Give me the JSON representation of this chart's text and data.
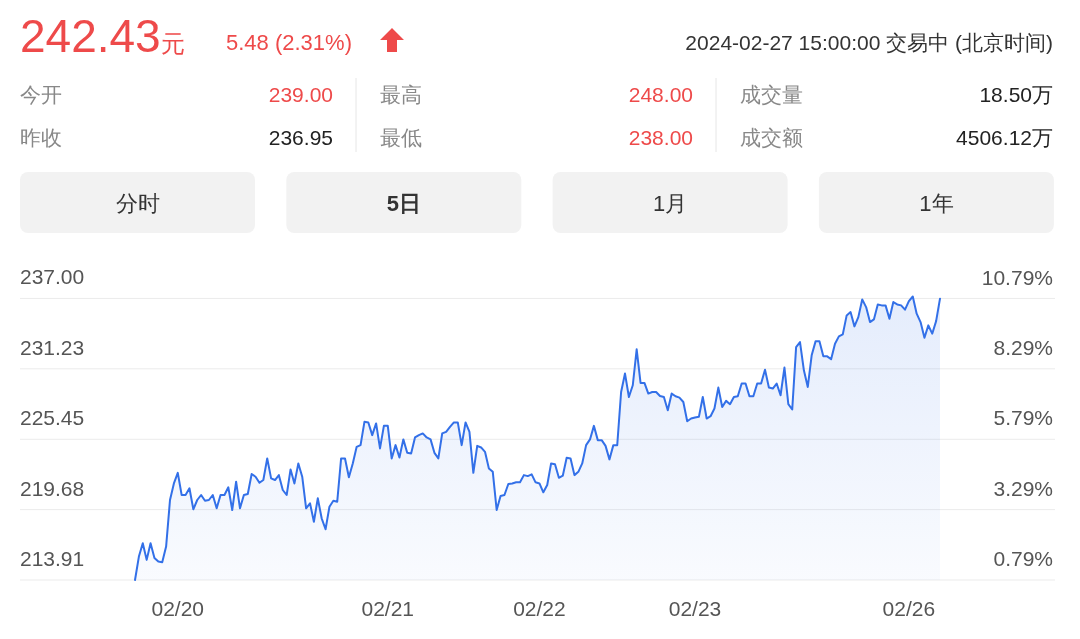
{
  "chart_data": [
    {
      "type": "other",
      "title": "242.43元",
      "annotations": [
        "5.48 (2.31%)",
        "2024-02-27 15:00:00 交易中 (北京时间)",
        "今开",
        "239.00",
        "最高",
        "248.00",
        "成交量",
        "18.50万",
        "昨收",
        "236.95",
        "最低",
        "238.00",
        "成交额",
        "4506.12万",
        "分时",
        "5日",
        "1月",
        "1年"
      ]
    },
    {
      "type": "area",
      "grid": "y",
      "categories": [
        null,
        null,
        null,
        null,
        null,
        null,
        null,
        null,
        null,
        null,
        null,
        "02/20",
        null,
        null,
        null,
        null,
        null,
        null,
        null,
        null,
        null,
        null,
        null,
        null,
        null,
        null,
        null,
        null,
        null,
        null,
        null,
        null,
        null,
        null,
        null,
        null,
        null,
        null,
        null,
        null,
        null,
        null,
        null,
        null,
        null,
        null,
        null,
        null,
        null,
        null,
        null,
        null,
        null,
        null,
        null,
        null,
        null,
        null,
        null,
        null,
        null,
        null,
        null,
        null,
        null,
        "02/21",
        null,
        null,
        null,
        null,
        null,
        null,
        null,
        null,
        null,
        null,
        null,
        null,
        null,
        null,
        null,
        null,
        null,
        null,
        null,
        null,
        null,
        null,
        null,
        null,
        null,
        null,
        null,
        null,
        null,
        null,
        null,
        null,
        null,
        null,
        null,
        null,
        null,
        null,
        "02/22",
        null,
        null,
        null,
        null,
        null,
        null,
        null,
        null,
        null,
        null,
        null,
        null,
        null,
        null,
        null,
        null,
        null,
        null,
        null,
        null,
        null,
        null,
        null,
        null,
        null,
        null,
        null,
        null,
        null,
        null,
        null,
        null,
        null,
        null,
        null,
        null,
        null,
        null,
        null,
        "02/23",
        null,
        null,
        null,
        null,
        null,
        null,
        null,
        null,
        null,
        null,
        null,
        null,
        null,
        null,
        null,
        null,
        null,
        null,
        null,
        null,
        null,
        null,
        null,
        null,
        null,
        null,
        null,
        null,
        null,
        null,
        null,
        null,
        null,
        null,
        null,
        null,
        null,
        null,
        null,
        null,
        null,
        null,
        null,
        null,
        null,
        null,
        null,
        null,
        null,
        null,
        null,
        null,
        null,
        null,
        "02/26",
        null,
        null,
        null,
        null,
        null,
        null,
        null,
        null
      ],
      "series": [
        {
          "color": "#3370e8",
          "values": [
            213.91,
            215.83,
            216.92,
            215.56,
            216.92,
            215.72,
            215.42,
            215.37,
            216.65,
            220.47,
            221.83,
            222.7,
            220.88,
            220.88,
            221.43,
            219.71,
            220.47,
            220.88,
            220.41,
            220.47,
            220.88,
            219.79,
            220.88,
            220.88,
            221.51,
            219.65,
            221.97,
            219.79,
            220.88,
            220.96,
            222.6,
            222.38,
            221.88,
            222.11,
            223.88,
            222.24,
            222.11,
            222.51,
            221.29,
            220.88,
            222.98,
            221.83,
            223.47,
            222.38,
            219.79,
            220.2,
            218.69,
            220.61,
            218.97,
            218.07,
            219.92,
            220.41,
            220.33,
            223.88,
            223.88,
            222.33,
            223.47,
            224.83,
            224.97,
            226.88,
            226.83,
            225.79,
            226.75,
            224.7,
            226.55,
            226.55,
            223.88,
            224.97,
            223.96,
            225.44,
            224.34,
            224.29,
            225.6,
            225.79,
            225.93,
            225.6,
            225.44,
            224.34,
            223.88,
            225.93,
            226.06,
            226.47,
            226.83,
            226.83,
            224.97,
            226.83,
            226.06,
            222.7,
            224.91,
            224.78,
            224.42,
            223.06,
            222.78,
            219.65,
            220.8,
            220.88,
            221.78,
            221.83,
            221.92,
            221.92,
            222.51,
            222.43,
            222.57,
            221.92,
            221.83,
            221.1,
            221.7,
            223.47,
            223.41,
            222.29,
            222.46,
            223.93,
            223.88,
            222.51,
            222.78,
            223.47,
            224.97,
            225.44,
            226.55,
            225.38,
            225.38,
            224.91,
            223.8,
            224.97,
            224.97,
            229.33,
            230.84,
            228.92,
            229.88,
            232.83,
            230.07,
            230.07,
            229.2,
            229.33,
            229.33,
            229.0,
            228.92,
            227.83,
            229.2,
            228.98,
            228.87,
            228.51,
            226.93,
            227.15,
            227.24,
            227.29,
            228.92,
            227.15,
            227.34,
            227.97,
            229.69,
            228.1,
            228.6,
            228.33,
            228.92,
            228.98,
            230.02,
            230.02,
            228.98,
            228.98,
            230.02,
            230.02,
            231.16,
            229.69,
            229.61,
            230.02,
            229.06,
            231.33,
            228.33,
            227.89,
            233.01,
            233.42,
            231.11,
            229.74,
            232.34,
            233.48,
            233.48,
            232.25,
            232.25,
            232.01,
            233.29,
            233.89,
            234.05,
            235.61,
            235.88,
            234.71,
            235.47,
            236.92,
            236.29,
            235.06,
            235.28,
            236.51,
            236.43,
            236.43,
            235.34,
            236.7,
            236.51,
            236.43,
            236.08,
            236.78,
            237.16,
            235.75,
            235.06,
            233.78,
            234.79,
            234.11,
            235.14,
            236.98
          ]
        }
      ],
      "ylim": [
        213.91,
        237.2
      ],
      "yticks": [
        {
          "value": 213.91,
          "label": "213.91"
        },
        {
          "value": 219.68,
          "label": "219.68"
        },
        {
          "value": 225.45,
          "label": "225.45"
        },
        {
          "value": 231.23,
          "label": "231.23"
        },
        {
          "value": 237.0,
          "label": "237.00"
        }
      ],
      "y2lim": [
        0.79,
        10.88
      ],
      "y2ticks": [
        {
          "value": 0.79,
          "label": "0.79%"
        },
        {
          "value": 3.29,
          "label": "3.29%"
        },
        {
          "value": 5.79,
          "label": "5.79%"
        },
        {
          "value": 8.29,
          "label": "8.29%"
        },
        {
          "value": 10.79,
          "label": "10.79%"
        }
      ]
    }
  ]
}
